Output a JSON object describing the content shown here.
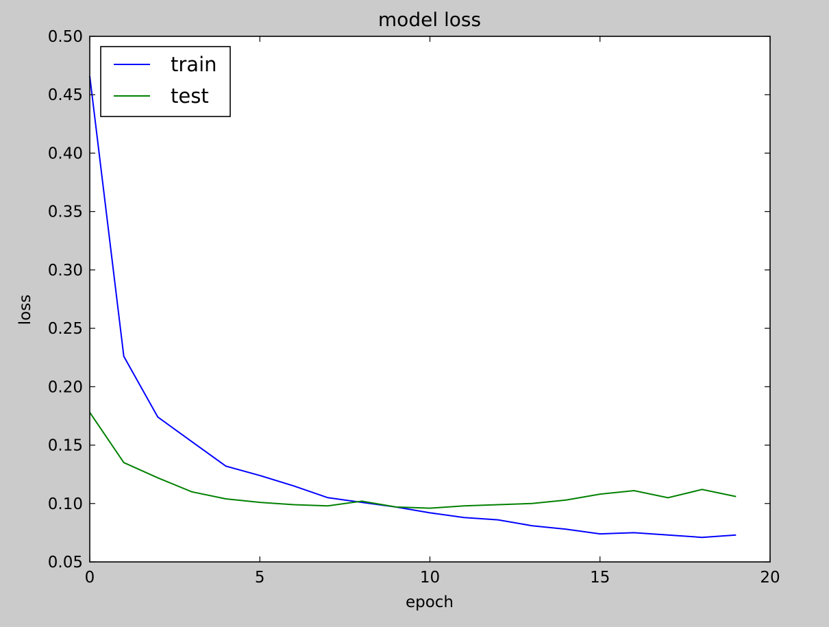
{
  "chart_data": {
    "type": "line",
    "title": "model loss",
    "xlabel": "epoch",
    "ylabel": "loss",
    "xlim": [
      0,
      20
    ],
    "ylim": [
      0.05,
      0.5
    ],
    "x_ticks": [
      0,
      5,
      10,
      15,
      20
    ],
    "x_tick_labels": [
      "0",
      "5",
      "10",
      "15",
      "20"
    ],
    "y_ticks": [
      0.05,
      0.1,
      0.15,
      0.2,
      0.25,
      0.3,
      0.35,
      0.4,
      0.45,
      0.5
    ],
    "y_tick_labels": [
      "0.05",
      "0.10",
      "0.15",
      "0.20",
      "0.25",
      "0.30",
      "0.35",
      "0.40",
      "0.45",
      "0.50"
    ],
    "grid": false,
    "legend": {
      "location": "upper left",
      "entries": [
        "train",
        "test"
      ]
    },
    "x": [
      0,
      1,
      2,
      3,
      4,
      5,
      6,
      7,
      8,
      9,
      10,
      11,
      12,
      13,
      14,
      15,
      16,
      17,
      18,
      19
    ],
    "series": [
      {
        "name": "train",
        "color": "#0000ff",
        "values": [
          0.466,
          0.226,
          0.174,
          0.153,
          0.132,
          0.124,
          0.115,
          0.105,
          0.101,
          0.097,
          0.092,
          0.088,
          0.086,
          0.081,
          0.078,
          0.074,
          0.075,
          0.073,
          0.071,
          0.073
        ]
      },
      {
        "name": "test",
        "color": "#008000",
        "values": [
          0.178,
          0.135,
          0.122,
          0.11,
          0.104,
          0.101,
          0.099,
          0.098,
          0.102,
          0.097,
          0.096,
          0.098,
          0.099,
          0.1,
          0.103,
          0.108,
          0.111,
          0.105,
          0.112,
          0.106
        ]
      }
    ]
  }
}
